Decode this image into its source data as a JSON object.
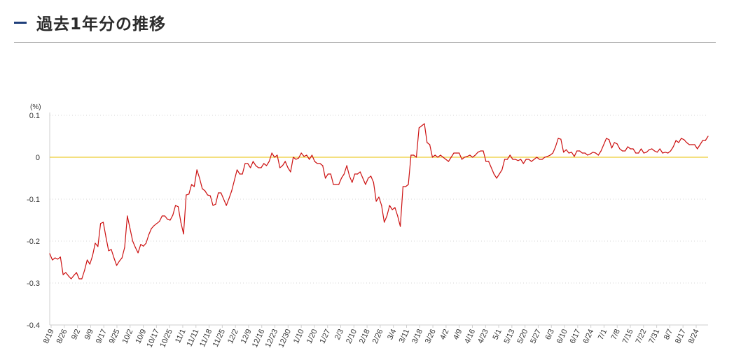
{
  "header": {
    "title": "過去1年分の推移"
  },
  "chart_data": {
    "type": "line",
    "unit_label": "(%)",
    "ylim": [
      -0.4,
      0.1
    ],
    "yticks": [
      0.1,
      0,
      -0.1,
      -0.2,
      -0.3,
      -0.4
    ],
    "ytick_labels": [
      "0.1",
      "0",
      "-0.1",
      "-0.2",
      "-0.3",
      "-0.4"
    ],
    "reference_line": {
      "y": 0,
      "color": "#e8c000"
    },
    "line_color": "#cc1111",
    "grid": true,
    "grid_style": "dotted-horizontal",
    "x_labels": [
      "8/19",
      "8/26",
      "9/2",
      "9/9",
      "9/17",
      "9/25",
      "10/2",
      "10/9",
      "10/17",
      "10/25",
      "11/1",
      "11/11",
      "11/18",
      "11/25",
      "12/2",
      "12/9",
      "12/16",
      "12/23",
      "12/30",
      "1/10",
      "1/20",
      "1/27",
      "2/3",
      "2/10",
      "2/18",
      "2/26",
      "3/4",
      "3/11",
      "3/18",
      "3/26",
      "4/2",
      "4/9",
      "4/16",
      "4/23",
      "5/1",
      "5/13",
      "5/20",
      "5/27",
      "6/3",
      "6/10",
      "6/17",
      "6/24",
      "7/1",
      "7/8",
      "7/15",
      "7/22",
      "7/31",
      "8/7",
      "8/17",
      "8/24"
    ],
    "values": [
      -0.23,
      -0.245,
      -0.24,
      -0.243,
      -0.238,
      -0.28,
      -0.275,
      -0.283,
      -0.29,
      -0.282,
      -0.275,
      -0.29,
      -0.29,
      -0.27,
      -0.245,
      -0.255,
      -0.235,
      -0.205,
      -0.213,
      -0.158,
      -0.155,
      -0.19,
      -0.223,
      -0.22,
      -0.24,
      -0.258,
      -0.248,
      -0.24,
      -0.215,
      -0.14,
      -0.17,
      -0.2,
      -0.215,
      -0.228,
      -0.208,
      -0.212,
      -0.205,
      -0.185,
      -0.17,
      -0.163,
      -0.158,
      -0.153,
      -0.14,
      -0.14,
      -0.148,
      -0.15,
      -0.138,
      -0.115,
      -0.118,
      -0.155,
      -0.183,
      -0.09,
      -0.088,
      -0.065,
      -0.07,
      -0.03,
      -0.05,
      -0.075,
      -0.08,
      -0.09,
      -0.092,
      -0.115,
      -0.112,
      -0.085,
      -0.085,
      -0.1,
      -0.115,
      -0.098,
      -0.08,
      -0.055,
      -0.03,
      -0.04,
      -0.04,
      -0.015,
      -0.015,
      -0.025,
      -0.01,
      -0.02,
      -0.025,
      -0.025,
      -0.015,
      -0.02,
      -0.01,
      0.01,
      0.0,
      0.005,
      -0.025,
      -0.02,
      -0.01,
      -0.025,
      -0.035,
      0.0,
      -0.005,
      -0.002,
      0.01,
      0.002,
      0.005,
      -0.005,
      0.005,
      -0.01,
      -0.015,
      -0.015,
      -0.02,
      -0.05,
      -0.04,
      -0.04,
      -0.065,
      -0.065,
      -0.065,
      -0.05,
      -0.04,
      -0.02,
      -0.045,
      -0.06,
      -0.04,
      -0.04,
      -0.035,
      -0.05,
      -0.065,
      -0.05,
      -0.045,
      -0.06,
      -0.105,
      -0.095,
      -0.115,
      -0.155,
      -0.14,
      -0.115,
      -0.125,
      -0.12,
      -0.14,
      -0.165,
      -0.07,
      -0.07,
      -0.065,
      0.005,
      0.005,
      0.0,
      0.07,
      0.075,
      0.08,
      0.035,
      0.03,
      0.0,
      0.005,
      0.0,
      0.005,
      0.0,
      -0.005,
      -0.01,
      0.0,
      0.01,
      0.01,
      0.01,
      -0.005,
      0.0,
      0.002,
      0.005,
      0.0,
      0.005,
      0.012,
      0.015,
      0.015,
      -0.01,
      -0.01,
      -0.025,
      -0.04,
      -0.05,
      -0.04,
      -0.03,
      -0.005,
      -0.005,
      0.005,
      -0.005,
      -0.005,
      -0.008,
      -0.005,
      -0.015,
      -0.005,
      -0.005,
      -0.01,
      -0.005,
      0.0,
      -0.005,
      -0.005,
      0.0,
      0.002,
      0.005,
      0.01,
      0.025,
      0.045,
      0.043,
      0.012,
      0.018,
      0.01,
      0.012,
      0.002,
      0.015,
      0.015,
      0.01,
      0.01,
      0.005,
      0.008,
      0.012,
      0.01,
      0.005,
      0.015,
      0.03,
      0.045,
      0.042,
      0.022,
      0.035,
      0.032,
      0.02,
      0.015,
      0.015,
      0.025,
      0.02,
      0.02,
      0.01,
      0.01,
      0.02,
      0.01,
      0.012,
      0.018,
      0.02,
      0.015,
      0.012,
      0.02,
      0.01,
      0.012,
      0.01,
      0.015,
      0.025,
      0.04,
      0.035,
      0.045,
      0.042,
      0.035,
      0.03,
      0.03,
      0.03,
      0.02,
      0.03,
      0.04,
      0.04,
      0.05
    ]
  }
}
